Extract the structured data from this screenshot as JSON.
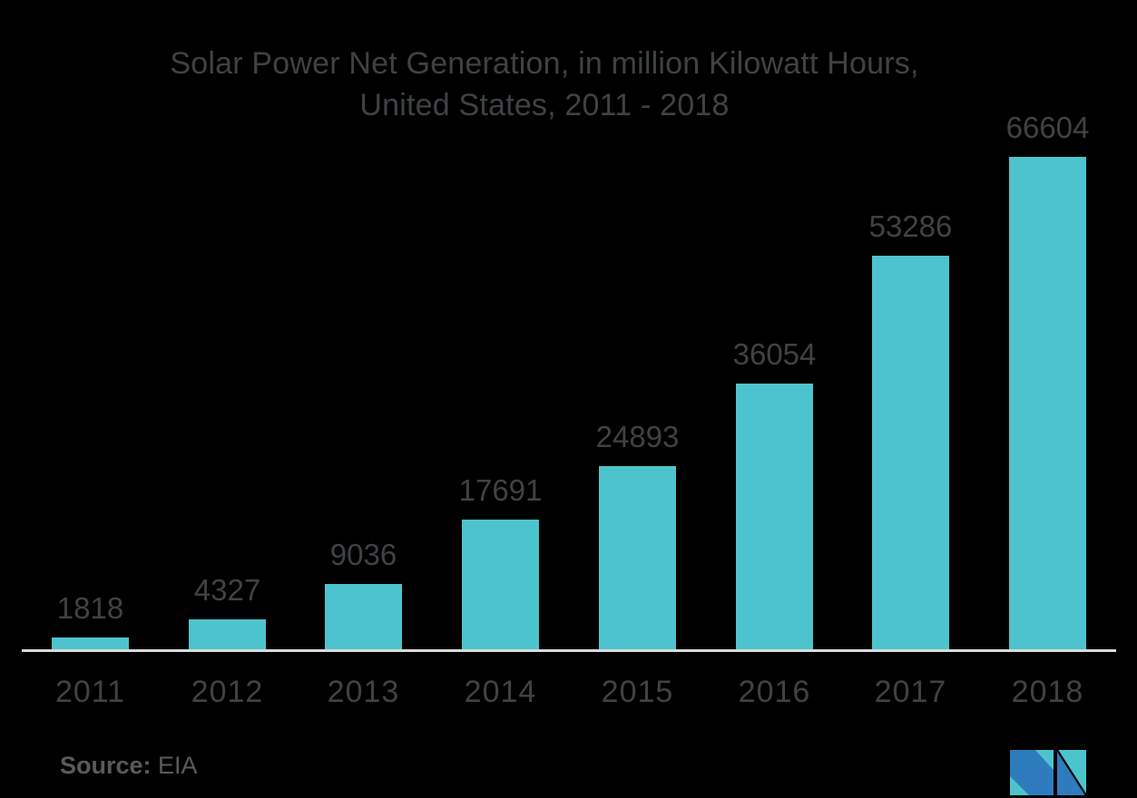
{
  "title": {
    "line1": "Solar Power Net Generation, in million Kilowatt Hours,",
    "line2": "United States, 2011 - 2018"
  },
  "chart_data": {
    "type": "bar",
    "categories": [
      "2011",
      "2012",
      "2013",
      "2014",
      "2015",
      "2016",
      "2017",
      "2018"
    ],
    "values": [
      1818,
      4327,
      9036,
      17691,
      24893,
      36054,
      53286,
      66604
    ],
    "title": "Solar Power Net Generation, in million Kilowatt Hours, United States, 2011 - 2018",
    "xlabel": "",
    "ylabel": "",
    "ylim": [
      0,
      66604
    ],
    "grid": false,
    "legend": false,
    "data_labels": true,
    "bar_color": "#4dc4cd",
    "label_color": "#3f4245",
    "axis_line_color": "#d9dadb",
    "background": "#000000"
  },
  "source": {
    "label": "Source:",
    "value": "EIA",
    "color": "#595a5e"
  },
  "logo": {
    "name": "mordor-intelligence-logo",
    "teal": "#4dc4cd",
    "blue": "#2e7bbd"
  }
}
